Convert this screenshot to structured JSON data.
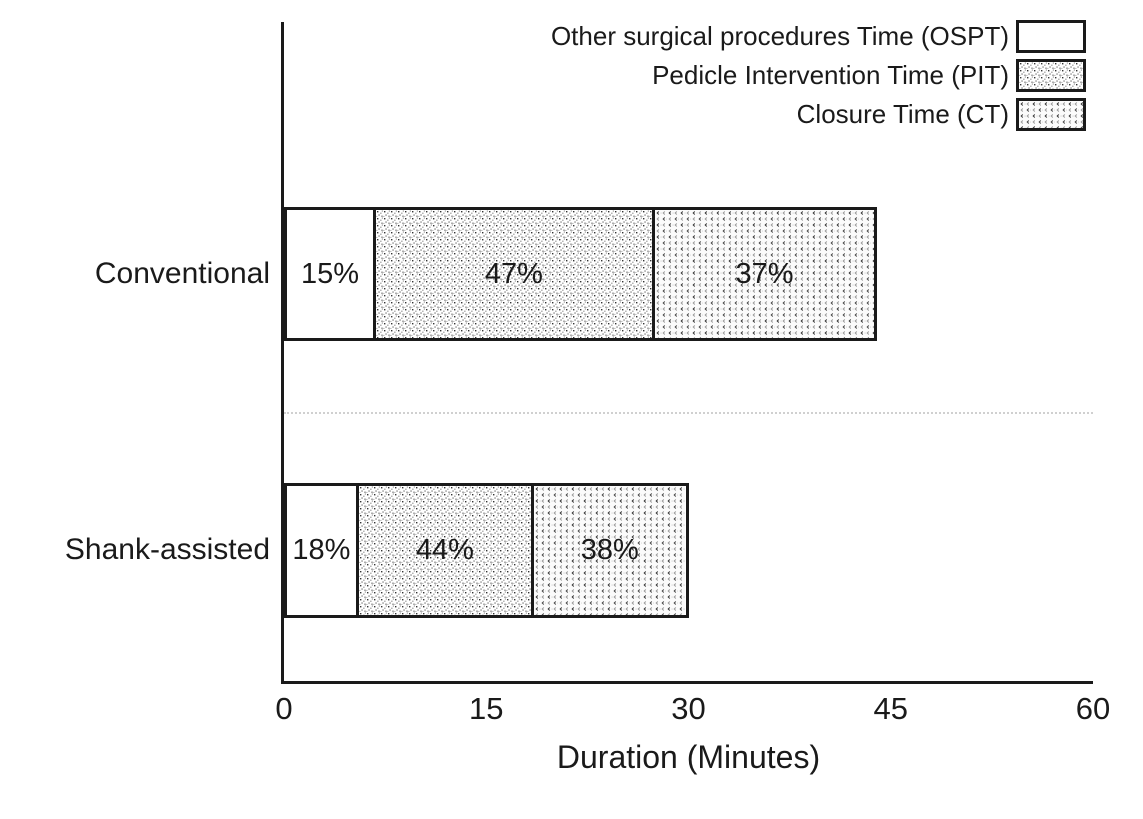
{
  "chart_data": {
    "type": "bar",
    "orientation": "horizontal-stacked",
    "xlabel": "Duration (Minutes)",
    "xlim": [
      0,
      60
    ],
    "x_ticks": [
      "0",
      "15",
      "30",
      "45",
      "60"
    ],
    "grid": "single dotted separator line between category groups",
    "legend_position": "top-right, swatches right of right-aligned labels",
    "categories": [
      "Conventional",
      "Shank-assisted"
    ],
    "totals_minutes": [
      44,
      30
    ],
    "series": [
      {
        "name": "Other surgical procedures Time (OSPT)",
        "pattern": "plain",
        "percents": [
          15,
          18
        ],
        "percent_labels": [
          "15%",
          "18%"
        ],
        "minutes": [
          6.6,
          5.4
        ]
      },
      {
        "name": "Pedicle Intervention Time (PIT)",
        "pattern": "dots",
        "percents": [
          47,
          44
        ],
        "percent_labels": [
          "47%",
          "44%"
        ],
        "minutes": [
          20.7,
          13.2
        ]
      },
      {
        "name": "Closure Time (CT)",
        "pattern": "chevrons",
        "percents": [
          37,
          38
        ],
        "percent_labels": [
          "37%",
          "38%"
        ],
        "minutes": [
          16.3,
          11.4
        ]
      }
    ],
    "colors": {
      "ink": "#1a1a1a",
      "background": "#ffffff",
      "separator_line": "#d0d0d0",
      "pattern_dot_dark": "#333333",
      "pattern_dot_light": "#999999"
    }
  }
}
